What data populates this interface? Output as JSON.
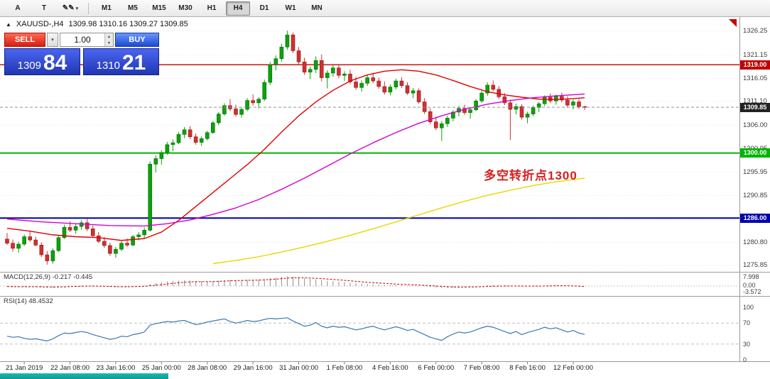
{
  "toolbar": {
    "tools": [
      {
        "id": "annotations",
        "label": "A"
      },
      {
        "id": "text",
        "label": "T"
      },
      {
        "id": "draw",
        "label": "✎",
        "dropdown": "▾"
      }
    ],
    "timeframes": [
      "M1",
      "M5",
      "M15",
      "M30",
      "H1",
      "H4",
      "D1",
      "W1",
      "MN"
    ],
    "active_timeframe": "H4"
  },
  "header": {
    "marker": "▲",
    "symbol": "XAUUSD-,H4",
    "quote": "1309.98 1310.16 1309.27 1309.85"
  },
  "trade_panel": {
    "sell_label": "SELL",
    "buy_label": "BUY",
    "volume": "1.00",
    "sell_price_small": "1309",
    "sell_price_big": "84",
    "buy_price_small": "1310",
    "buy_price_big": "21"
  },
  "chart_data": {
    "type": "candlestick",
    "symbol": "XAUUSD-",
    "timeframe": "H4",
    "last_bar": {
      "open": 1309.98,
      "high": 1310.16,
      "low": 1309.27,
      "close": 1309.85
    },
    "up_color": "#0ca10c",
    "down_color": "#d03030",
    "y_axis_ticks": [
      "1326.25",
      "1321.15",
      "1316.05",
      "1311.10",
      "1306.00",
      "1300.95",
      "1295.95",
      "1290.85",
      "1285.75",
      "1280.80",
      "1275.85"
    ],
    "x_axis_labels": [
      "21 Jan 2019",
      "22 Jan 08:00",
      "23 Jan 16:00",
      "25 Jan 00:00",
      "28 Jan 08:00",
      "29 Jan 16:00",
      "31 Jan 00:00",
      "1 Feb 08:00",
      "4 Feb 16:00",
      "6 Feb 00:00",
      "7 Feb 08:00",
      "8 Feb 16:00",
      "12 Feb 00:00"
    ],
    "x_label_indices": [
      3,
      11,
      19,
      27,
      35,
      43,
      51,
      59,
      67,
      75,
      83,
      91,
      99
    ],
    "hlines": [
      {
        "price": 1319.0,
        "label": "1319.00",
        "color": "#c00000",
        "width": 1.4
      },
      {
        "price": 1300.0,
        "label": "1300.00",
        "color": "#00b400",
        "width": 2
      },
      {
        "price": 1286.0,
        "label": "1286.00",
        "color": "#0000aa",
        "width": 2
      }
    ],
    "current_price": {
      "value": 1309.85,
      "label": "1309.85",
      "color": "#222222"
    },
    "annotation": {
      "text": "多空转折点1300",
      "color": "#d42020"
    },
    "candles": [
      [
        1281.5,
        1282.8,
        1280.2,
        1280.6
      ],
      [
        1280.6,
        1281.4,
        1278.8,
        1279.5
      ],
      [
        1279.5,
        1280.9,
        1278.6,
        1280.4
      ],
      [
        1280.4,
        1282.5,
        1280.0,
        1282.0
      ],
      [
        1282.0,
        1283.2,
        1280.9,
        1281.3
      ],
      [
        1281.3,
        1282.0,
        1279.9,
        1280.2
      ],
      [
        1280.2,
        1280.8,
        1277.6,
        1278.1
      ],
      [
        1278.1,
        1278.9,
        1276.0,
        1276.8
      ],
      [
        1276.8,
        1279.5,
        1276.2,
        1279.0
      ],
      [
        1279.0,
        1282.2,
        1278.7,
        1281.8
      ],
      [
        1281.8,
        1284.6,
        1281.5,
        1284.0
      ],
      [
        1284.0,
        1285.3,
        1283.0,
        1283.4
      ],
      [
        1283.4,
        1284.8,
        1282.6,
        1284.2
      ],
      [
        1284.2,
        1285.6,
        1283.5,
        1285.0
      ],
      [
        1285.0,
        1285.8,
        1283.2,
        1283.7
      ],
      [
        1283.7,
        1284.4,
        1281.8,
        1282.2
      ],
      [
        1282.2,
        1283.0,
        1280.6,
        1281.0
      ],
      [
        1281.0,
        1281.9,
        1279.6,
        1280.1
      ],
      [
        1280.1,
        1280.7,
        1277.9,
        1278.4
      ],
      [
        1278.4,
        1279.8,
        1277.5,
        1279.3
      ],
      [
        1279.3,
        1281.0,
        1278.9,
        1280.6
      ],
      [
        1280.6,
        1281.6,
        1279.8,
        1280.2
      ],
      [
        1280.2,
        1282.4,
        1280.0,
        1282.0
      ],
      [
        1282.0,
        1283.0,
        1281.2,
        1282.4
      ],
      [
        1282.4,
        1284.0,
        1281.7,
        1283.4
      ],
      [
        1283.4,
        1298.2,
        1283.1,
        1297.6
      ],
      [
        1297.6,
        1299.5,
        1295.8,
        1298.8
      ],
      [
        1298.8,
        1300.6,
        1297.5,
        1300.1
      ],
      [
        1300.1,
        1302.4,
        1299.6,
        1301.8
      ],
      [
        1301.8,
        1302.9,
        1300.4,
        1302.2
      ],
      [
        1302.2,
        1304.5,
        1301.9,
        1304.0
      ],
      [
        1304.0,
        1305.6,
        1303.2,
        1305.0
      ],
      [
        1305.0,
        1305.8,
        1303.0,
        1303.5
      ],
      [
        1303.5,
        1304.2,
        1301.8,
        1302.3
      ],
      [
        1302.3,
        1303.6,
        1301.5,
        1303.1
      ],
      [
        1303.1,
        1304.8,
        1302.7,
        1304.4
      ],
      [
        1304.4,
        1306.9,
        1304.1,
        1306.5
      ],
      [
        1306.5,
        1308.8,
        1306.0,
        1308.4
      ],
      [
        1308.4,
        1310.7,
        1308.0,
        1310.2
      ],
      [
        1310.2,
        1311.6,
        1309.0,
        1309.5
      ],
      [
        1309.5,
        1310.4,
        1307.8,
        1308.3
      ],
      [
        1308.3,
        1309.9,
        1307.6,
        1309.4
      ],
      [
        1309.4,
        1311.8,
        1309.0,
        1311.3
      ],
      [
        1311.3,
        1312.6,
        1310.2,
        1310.8
      ],
      [
        1310.8,
        1312.0,
        1309.6,
        1311.6
      ],
      [
        1311.6,
        1315.8,
        1311.2,
        1315.2
      ],
      [
        1315.2,
        1319.6,
        1314.6,
        1319.0
      ],
      [
        1319.0,
        1321.0,
        1317.8,
        1320.3
      ],
      [
        1320.3,
        1323.5,
        1319.6,
        1322.8
      ],
      [
        1322.8,
        1326.3,
        1322.2,
        1325.4
      ],
      [
        1325.4,
        1325.9,
        1321.5,
        1322.0
      ],
      [
        1322.0,
        1322.8,
        1318.9,
        1319.6
      ],
      [
        1319.6,
        1320.5,
        1316.8,
        1317.4
      ],
      [
        1317.4,
        1318.6,
        1315.9,
        1318.0
      ],
      [
        1318.0,
        1320.8,
        1317.2,
        1319.9
      ],
      [
        1319.9,
        1321.2,
        1315.4,
        1316.2
      ],
      [
        1316.2,
        1317.8,
        1313.9,
        1317.2
      ],
      [
        1317.2,
        1318.9,
        1316.4,
        1318.3
      ],
      [
        1318.3,
        1319.0,
        1316.1,
        1316.7
      ],
      [
        1316.7,
        1317.6,
        1315.5,
        1317.0
      ],
      [
        1317.0,
        1317.9,
        1314.8,
        1315.3
      ],
      [
        1315.3,
        1316.4,
        1313.6,
        1314.1
      ],
      [
        1314.1,
        1315.6,
        1313.2,
        1315.0
      ],
      [
        1315.0,
        1316.8,
        1314.4,
        1316.2
      ],
      [
        1316.2,
        1317.3,
        1315.0,
        1315.5
      ],
      [
        1315.5,
        1316.2,
        1313.8,
        1314.3
      ],
      [
        1314.3,
        1315.4,
        1312.6,
        1313.1
      ],
      [
        1313.1,
        1314.8,
        1312.4,
        1314.2
      ],
      [
        1314.2,
        1316.0,
        1313.7,
        1315.5
      ],
      [
        1315.5,
        1316.3,
        1314.0,
        1314.5
      ],
      [
        1314.5,
        1315.2,
        1312.5,
        1312.9
      ],
      [
        1312.9,
        1314.0,
        1311.8,
        1313.4
      ],
      [
        1313.4,
        1313.9,
        1310.6,
        1311.0
      ],
      [
        1311.0,
        1311.8,
        1308.4,
        1308.9
      ],
      [
        1308.9,
        1309.6,
        1306.2,
        1306.7
      ],
      [
        1306.7,
        1307.8,
        1304.9,
        1305.4
      ],
      [
        1305.4,
        1306.9,
        1302.6,
        1306.3
      ],
      [
        1306.3,
        1308.0,
        1305.6,
        1307.5
      ],
      [
        1307.5,
        1309.2,
        1306.8,
        1308.8
      ],
      [
        1308.8,
        1310.1,
        1307.9,
        1309.6
      ],
      [
        1309.6,
        1310.4,
        1308.2,
        1308.7
      ],
      [
        1308.7,
        1309.8,
        1307.4,
        1309.3
      ],
      [
        1309.3,
        1311.6,
        1309.0,
        1311.2
      ],
      [
        1311.2,
        1313.4,
        1310.8,
        1312.9
      ],
      [
        1312.9,
        1315.2,
        1312.3,
        1314.6
      ],
      [
        1314.6,
        1315.6,
        1313.2,
        1313.7
      ],
      [
        1313.7,
        1314.4,
        1311.6,
        1312.1
      ],
      [
        1312.1,
        1312.9,
        1310.3,
        1310.8
      ],
      [
        1310.8,
        1311.5,
        1302.8,
        1309.4
      ],
      [
        1309.4,
        1310.6,
        1308.3,
        1310.0
      ],
      [
        1310.0,
        1310.5,
        1307.2,
        1307.7
      ],
      [
        1307.7,
        1308.9,
        1306.4,
        1308.4
      ],
      [
        1308.4,
        1310.2,
        1307.9,
        1309.8
      ],
      [
        1309.8,
        1311.0,
        1308.8,
        1310.6
      ],
      [
        1310.6,
        1312.4,
        1310.1,
        1312.0
      ],
      [
        1312.0,
        1312.8,
        1310.7,
        1311.2
      ],
      [
        1311.2,
        1312.6,
        1310.4,
        1312.2
      ],
      [
        1312.2,
        1313.0,
        1310.9,
        1311.4
      ],
      [
        1311.4,
        1312.2,
        1309.8,
        1310.3
      ],
      [
        1310.3,
        1311.5,
        1309.4,
        1311.0
      ],
      [
        1311.0,
        1311.6,
        1309.5,
        1309.98
      ],
      [
        1309.98,
        1310.16,
        1309.27,
        1309.85
      ]
    ],
    "moving_averages": [
      {
        "name": "ma-fast-red",
        "color": "#e00000",
        "points": [
          [
            0,
            1283.8
          ],
          [
            4,
            1283.2
          ],
          [
            8,
            1282.4
          ],
          [
            12,
            1282.0
          ],
          [
            16,
            1281.8
          ],
          [
            20,
            1281.2
          ],
          [
            24,
            1281.6
          ],
          [
            27,
            1283.0
          ],
          [
            30,
            1285.5
          ],
          [
            33,
            1288.5
          ],
          [
            36,
            1291.5
          ],
          [
            39,
            1294.5
          ],
          [
            42,
            1297.5
          ],
          [
            45,
            1300.8
          ],
          [
            48,
            1304.5
          ],
          [
            51,
            1308.0
          ],
          [
            54,
            1311.0
          ],
          [
            57,
            1313.5
          ],
          [
            60,
            1315.5
          ],
          [
            63,
            1316.8
          ],
          [
            66,
            1317.6
          ],
          [
            69,
            1317.9
          ],
          [
            72,
            1317.6
          ],
          [
            75,
            1316.8
          ],
          [
            78,
            1315.6
          ],
          [
            81,
            1314.3
          ],
          [
            84,
            1313.2
          ],
          [
            87,
            1312.5
          ],
          [
            90,
            1312.0
          ],
          [
            93,
            1311.6
          ],
          [
            96,
            1311.5
          ],
          [
            99,
            1311.7
          ],
          [
            101,
            1311.9
          ]
        ]
      },
      {
        "name": "ma-mid-magenta",
        "color": "#d400d4",
        "points": [
          [
            0,
            1285.8
          ],
          [
            6,
            1285.2
          ],
          [
            12,
            1284.8
          ],
          [
            18,
            1284.4
          ],
          [
            24,
            1284.3
          ],
          [
            28,
            1284.8
          ],
          [
            32,
            1285.6
          ],
          [
            36,
            1286.8
          ],
          [
            40,
            1288.2
          ],
          [
            44,
            1290.0
          ],
          [
            48,
            1292.2
          ],
          [
            52,
            1294.6
          ],
          [
            56,
            1297.2
          ],
          [
            60,
            1299.8
          ],
          [
            64,
            1302.2
          ],
          [
            68,
            1304.4
          ],
          [
            72,
            1306.4
          ],
          [
            76,
            1308.0
          ],
          [
            80,
            1309.4
          ],
          [
            84,
            1310.5
          ],
          [
            88,
            1311.3
          ],
          [
            92,
            1311.9
          ],
          [
            96,
            1312.3
          ],
          [
            101,
            1312.7
          ]
        ]
      },
      {
        "name": "ma-slow-yellow",
        "color": "#e6d800",
        "points": [
          [
            36,
            1276.2
          ],
          [
            40,
            1276.9
          ],
          [
            44,
            1277.7
          ],
          [
            48,
            1278.7
          ],
          [
            52,
            1279.8
          ],
          [
            56,
            1281.0
          ],
          [
            60,
            1282.3
          ],
          [
            64,
            1283.7
          ],
          [
            68,
            1285.2
          ],
          [
            72,
            1286.7
          ],
          [
            76,
            1288.2
          ],
          [
            80,
            1289.6
          ],
          [
            84,
            1290.9
          ],
          [
            88,
            1292.0
          ],
          [
            92,
            1293.0
          ],
          [
            96,
            1293.8
          ],
          [
            101,
            1294.6
          ]
        ]
      }
    ],
    "macd": {
      "title": "MACD(12,26,9) -0.217 -0.445",
      "axis_labels": [
        "7.998",
        "0.00",
        "-3.572"
      ],
      "hist_color": "#909090",
      "signal_color": "#d00000",
      "hist": [
        -0.5,
        -0.7,
        -0.8,
        -0.6,
        -0.5,
        -0.6,
        -0.9,
        -1.2,
        -1.1,
        -0.7,
        -0.2,
        0.0,
        0.2,
        0.4,
        0.4,
        0.1,
        -0.2,
        -0.5,
        -0.8,
        -0.9,
        -0.7,
        -0.5,
        -0.3,
        -0.2,
        0.3,
        1.6,
        2.6,
        3.3,
        3.9,
        4.2,
        4.5,
        4.7,
        4.6,
        4.2,
        3.9,
        3.8,
        4.0,
        4.4,
        4.9,
        5.2,
        5.1,
        5.0,
        5.2,
        5.3,
        5.3,
        5.8,
        6.6,
        7.2,
        7.7,
        8.0,
        7.8,
        7.2,
        6.4,
        5.8,
        5.5,
        5.0,
        4.4,
        4.0,
        3.6,
        3.2,
        2.8,
        2.3,
        1.9,
        1.7,
        1.5,
        1.2,
        0.9,
        0.7,
        0.7,
        0.6,
        0.4,
        0.3,
        0.1,
        -0.3,
        -0.8,
        -1.3,
        -1.6,
        -1.5,
        -1.2,
        -0.9,
        -0.7,
        -0.6,
        -0.3,
        0.1,
        0.5,
        0.8,
        0.8,
        0.6,
        0.3,
        0.2,
        0.0,
        -0.1,
        0.0,
        0.2,
        0.4,
        0.5,
        0.5,
        0.4,
        0.2,
        0.0,
        -0.1,
        -0.217
      ],
      "signal": [
        -0.4,
        -0.5,
        -0.6,
        -0.6,
        -0.6,
        -0.6,
        -0.7,
        -0.8,
        -0.9,
        -0.8,
        -0.7,
        -0.5,
        -0.3,
        -0.2,
        -0.1,
        -0.1,
        -0.1,
        -0.2,
        -0.3,
        -0.5,
        -0.6,
        -0.6,
        -0.5,
        -0.4,
        -0.2,
        0.2,
        0.7,
        1.2,
        1.7,
        2.2,
        2.7,
        3.1,
        3.4,
        3.6,
        3.6,
        3.7,
        3.7,
        3.9,
        4.1,
        4.3,
        4.5,
        4.6,
        4.7,
        4.8,
        4.9,
        5.1,
        5.4,
        5.7,
        6.1,
        6.5,
        6.8,
        6.9,
        6.8,
        6.6,
        6.4,
        6.1,
        5.8,
        5.4,
        5.1,
        4.7,
        4.3,
        3.9,
        3.5,
        3.1,
        2.8,
        2.5,
        2.2,
        1.9,
        1.6,
        1.4,
        1.2,
        1.0,
        0.8,
        0.6,
        0.3,
        0.0,
        -0.3,
        -0.6,
        -0.8,
        -0.9,
        -0.9,
        -0.8,
        -0.7,
        -0.6,
        -0.4,
        -0.2,
        -0.1,
        0.0,
        0.0,
        0.0,
        0.0,
        -0.1,
        -0.1,
        -0.1,
        0.0,
        0.1,
        0.2,
        0.2,
        0.2,
        0.1,
        -0.1,
        -0.445
      ]
    },
    "rsi": {
      "title": "RSI(14) 48.4532",
      "axis_labels": [
        "100",
        "70",
        "30",
        "0"
      ],
      "levels": [
        70,
        30
      ],
      "color": "#3a78b5",
      "values": [
        45,
        43,
        44,
        41,
        39,
        40,
        38,
        36,
        40,
        46,
        51,
        50,
        52,
        54,
        52,
        48,
        45,
        42,
        39,
        41,
        45,
        44,
        48,
        50,
        53,
        66,
        69,
        71,
        73,
        72,
        74,
        75,
        71,
        67,
        69,
        72,
        74,
        76,
        78,
        73,
        70,
        72,
        75,
        73,
        74,
        77,
        79,
        78,
        79,
        80,
        74,
        69,
        64,
        66,
        71,
        64,
        61,
        64,
        62,
        63,
        60,
        57,
        59,
        62,
        64,
        60,
        57,
        60,
        63,
        60,
        56,
        58,
        53,
        48,
        43,
        40,
        37,
        44,
        49,
        53,
        51,
        53,
        57,
        61,
        64,
        62,
        58,
        54,
        50,
        54,
        48,
        52,
        55,
        58,
        62,
        59,
        61,
        57,
        53,
        56,
        51,
        48.45
      ]
    }
  }
}
